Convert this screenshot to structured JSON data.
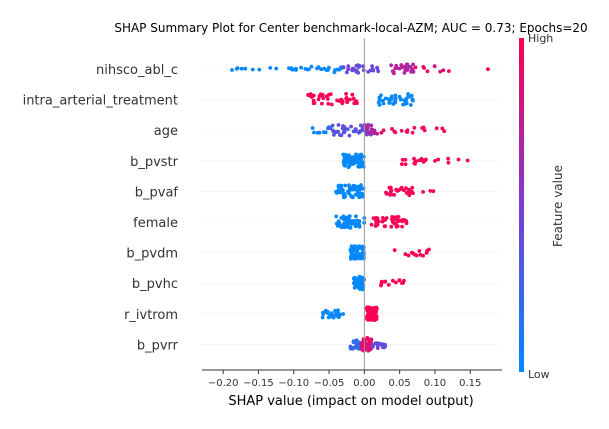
{
  "chart_data": {
    "type": "scatter",
    "title": "SHAP Summary Plot for Center benchmark-local-AZM; AUC = 0.73; Epochs=20",
    "xlabel": "SHAP value (impact on model output)",
    "xlim": [
      -0.23,
      0.195
    ],
    "xticks": [
      -0.2,
      -0.15,
      -0.1,
      -0.05,
      0.0,
      0.05,
      0.1,
      0.15
    ],
    "xtick_labels": [
      "−0.20",
      "−0.15",
      "−0.10",
      "−0.05",
      "0.00",
      "0.05",
      "0.10",
      "0.15"
    ],
    "colorbar": {
      "label": "Feature value",
      "high_label": "High",
      "low_label": "Low",
      "low_color": "#008bfb",
      "mid_color": "#7c3cd2",
      "high_color": "#ff0052"
    },
    "grid": false,
    "features": [
      {
        "name": "nihsco_abl_c",
        "clusters": [
          [
            -0.21,
            -0.08,
            0.0,
            18,
            0.2
          ],
          [
            -0.09,
            -0.03,
            0.0,
            16,
            0.5
          ],
          [
            -0.03,
            0.03,
            0.4,
            26,
            0.6
          ],
          [
            0.03,
            0.07,
            0.7,
            24,
            0.75
          ],
          [
            0.07,
            0.13,
            0.9,
            8,
            0.5
          ],
          [
            0.17,
            0.18,
            1.0,
            1,
            0.1
          ]
        ]
      },
      {
        "name": "intra_arterial_treatment",
        "clusters": [
          [
            -0.08,
            -0.01,
            1.0,
            44,
            0.9
          ],
          [
            0.02,
            0.07,
            0.0,
            40,
            0.9
          ]
        ]
      },
      {
        "name": "age",
        "clusters": [
          [
            -0.08,
            -0.04,
            0.05,
            12,
            0.5
          ],
          [
            -0.05,
            0.01,
            0.35,
            40,
            0.85
          ],
          [
            0.0,
            0.02,
            0.7,
            14,
            0.8
          ],
          [
            0.02,
            0.09,
            0.95,
            14,
            0.5
          ],
          [
            0.1,
            0.12,
            1.0,
            3,
            0.3
          ]
        ]
      },
      {
        "name": "b_pvstr",
        "clusters": [
          [
            -0.03,
            0.0,
            0.0,
            70,
            1.0
          ],
          [
            0.05,
            0.09,
            1.0,
            16,
            0.6
          ],
          [
            0.1,
            0.15,
            1.0,
            6,
            0.4
          ]
        ]
      },
      {
        "name": "b_pvaf",
        "clusters": [
          [
            -0.04,
            0.0,
            0.0,
            60,
            1.0
          ],
          [
            0.03,
            0.07,
            1.0,
            28,
            0.6
          ],
          [
            0.08,
            0.11,
            1.0,
            3,
            0.2
          ]
        ]
      },
      {
        "name": "female",
        "clusters": [
          [
            -0.04,
            0.0,
            0.0,
            50,
            0.9
          ],
          [
            0.01,
            0.06,
            1.0,
            44,
            0.8
          ]
        ]
      },
      {
        "name": "b_pvdm",
        "clusters": [
          [
            -0.02,
            0.0,
            0.0,
            60,
            1.0
          ],
          [
            0.04,
            0.1,
            1.0,
            14,
            0.5
          ]
        ]
      },
      {
        "name": "b_pvhc",
        "clusters": [
          [
            -0.015,
            0.0,
            0.0,
            56,
            1.0
          ],
          [
            0.02,
            0.06,
            1.0,
            14,
            0.5
          ]
        ]
      },
      {
        "name": "r_ivtrom",
        "clusters": [
          [
            -0.06,
            -0.03,
            0.0,
            24,
            0.6
          ],
          [
            0.003,
            0.018,
            1.0,
            60,
            1.0
          ]
        ]
      },
      {
        "name": "b_pvrr",
        "clusters": [
          [
            -0.02,
            -0.005,
            0.2,
            22,
            0.7
          ],
          [
            -0.005,
            0.01,
            0.9,
            50,
            1.0
          ],
          [
            0.01,
            0.03,
            0.4,
            18,
            0.6
          ]
        ]
      }
    ]
  }
}
